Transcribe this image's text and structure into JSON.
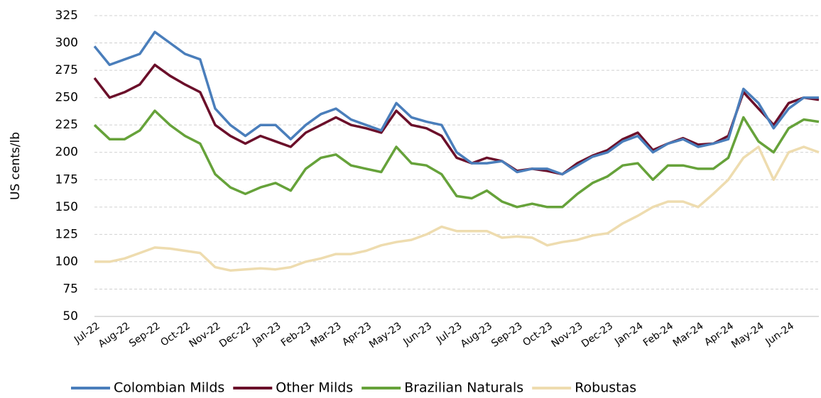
{
  "chart_data": {
    "type": "line",
    "ylabel": "US cents/lb",
    "categories": [
      "Jul-22",
      null,
      "Aug-22",
      null,
      "Sep-22",
      null,
      "Oct-22",
      null,
      "Nov-22",
      null,
      "Dec-22",
      null,
      "Jan-23",
      null,
      "Feb-23",
      null,
      "Mar-23",
      null,
      "Apr-23",
      null,
      "May-23",
      null,
      "Jun-23",
      null,
      "Jul-23",
      null,
      "Aug-23",
      null,
      "Sep-23",
      null,
      "Oct-23",
      null,
      "Nov-23",
      null,
      "Dec-23",
      null,
      "Jan-24",
      null,
      "Feb-24",
      null,
      "Mar-24",
      null,
      "Apr-24",
      null,
      "May-24",
      null,
      "Jun-24",
      null,
      null
    ],
    "series": [
      {
        "name": "Colombian Milds",
        "color": "#4a7ebb",
        "values": [
          297,
          280,
          285,
          290,
          310,
          300,
          290,
          285,
          240,
          225,
          215,
          225,
          225,
          212,
          225,
          235,
          240,
          230,
          225,
          220,
          245,
          232,
          228,
          225,
          200,
          190,
          190,
          192,
          182,
          185,
          185,
          180,
          188,
          196,
          200,
          210,
          215,
          200,
          208,
          212,
          205,
          208,
          212,
          258,
          245,
          222,
          240,
          250,
          250
        ]
      },
      {
        "name": "Other Milds",
        "color": "#6b0f2a",
        "values": [
          268,
          250,
          255,
          262,
          280,
          270,
          262,
          255,
          225,
          215,
          208,
          215,
          210,
          205,
          218,
          225,
          232,
          225,
          222,
          218,
          238,
          225,
          222,
          215,
          195,
          190,
          195,
          192,
          183,
          185,
          183,
          180,
          190,
          197,
          202,
          212,
          218,
          202,
          208,
          213,
          207,
          208,
          215,
          255,
          240,
          225,
          245,
          250,
          248
        ]
      },
      {
        "name": "Brazilian Naturals",
        "color": "#66a23a",
        "values": [
          225,
          212,
          212,
          220,
          238,
          225,
          215,
          208,
          180,
          168,
          162,
          168,
          172,
          165,
          185,
          195,
          198,
          188,
          185,
          182,
          205,
          190,
          188,
          180,
          160,
          158,
          165,
          155,
          150,
          153,
          150,
          150,
          162,
          172,
          178,
          188,
          190,
          175,
          188,
          188,
          185,
          185,
          195,
          232,
          210,
          200,
          222,
          230,
          228
        ]
      },
      {
        "name": "Robustas",
        "color": "#eedcaf",
        "values": [
          100,
          100,
          103,
          108,
          113,
          112,
          110,
          108,
          95,
          92,
          93,
          94,
          93,
          95,
          100,
          103,
          107,
          107,
          110,
          115,
          118,
          120,
          125,
          132,
          128,
          128,
          128,
          122,
          123,
          122,
          115,
          118,
          120,
          124,
          126,
          135,
          142,
          150,
          155,
          155,
          150,
          162,
          175,
          195,
          205,
          175,
          200,
          205,
          200
        ]
      }
    ],
    "ylim": [
      50,
      325
    ],
    "yticks": [
      50,
      75,
      100,
      125,
      150,
      175,
      200,
      225,
      250,
      275,
      300,
      325
    ],
    "grid": true,
    "legend": "bottom"
  }
}
